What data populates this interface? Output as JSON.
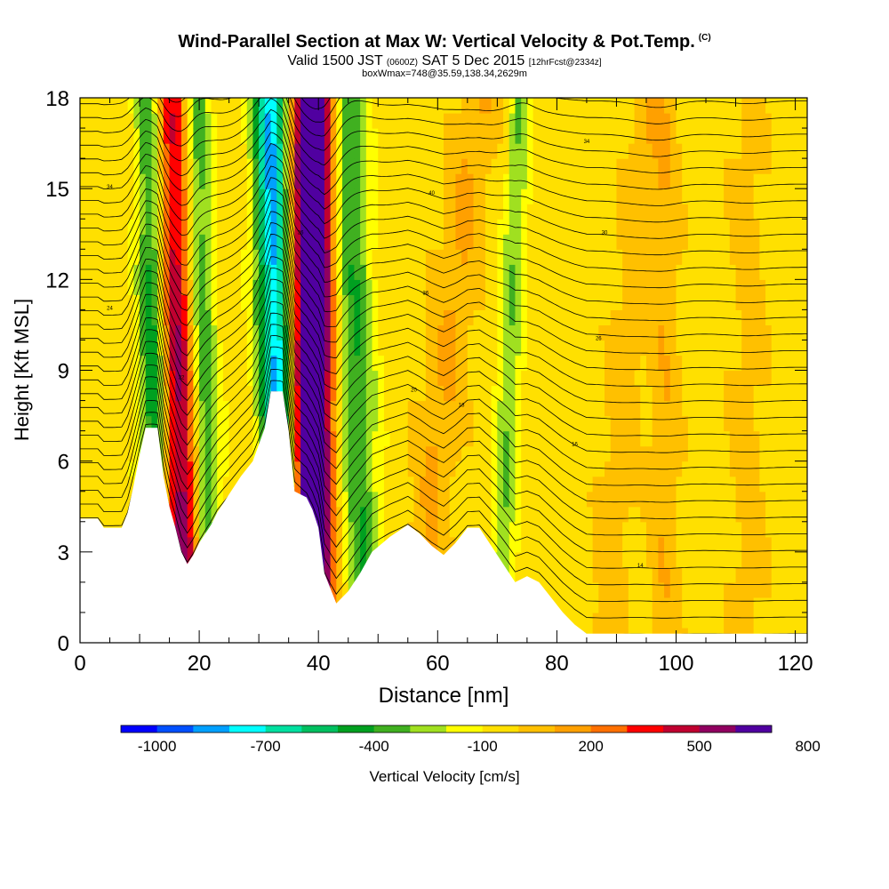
{
  "header": {
    "title": "Wind-Parallel Section at Max W: Vertical Velocity & Pot.Temp.",
    "title_tag": "(C)",
    "valid_prefix": "Valid 1500 JST",
    "valid_utc": "(0600Z)",
    "valid_date": "SAT 5 Dec 2015",
    "forecast": "[12hrFcst@2334z]",
    "box_info": "boxWmax=748@35.59,138.34,2629m"
  },
  "colorbar": {
    "title": "Vertical Velocity [cm/s]",
    "labels": [
      "-1000",
      "-700",
      "-400",
      "-100",
      "200",
      "500",
      "800"
    ],
    "colors": [
      "#0000ff",
      "#0050ff",
      "#00a0ff",
      "#00ffff",
      "#00e0a0",
      "#00c060",
      "#00a020",
      "#40b020",
      "#a0e020",
      "#ffff00",
      "#ffe000",
      "#ffc000",
      "#ffa000",
      "#ff7000",
      "#ff0000",
      "#c00030",
      "#900060",
      "#5000a0"
    ]
  },
  "chart_data": {
    "type": "heatmap",
    "xlabel": "Distance [nm]",
    "ylabel": "Height [Kft MSL]",
    "xlim": [
      0,
      122
    ],
    "ylim": [
      0,
      18
    ],
    "xticks": [
      0,
      20,
      40,
      60,
      80,
      100,
      120
    ],
    "yticks": [
      0,
      3,
      6,
      9,
      12,
      15,
      18
    ],
    "terrain": [
      [
        0,
        4.1
      ],
      [
        3,
        4.1
      ],
      [
        4,
        3.8
      ],
      [
        7,
        3.8
      ],
      [
        8,
        4.3
      ],
      [
        9,
        5.2
      ],
      [
        10,
        6.2
      ],
      [
        11,
        7.1
      ],
      [
        13,
        7.1
      ],
      [
        14,
        5.5
      ],
      [
        15,
        4.5
      ],
      [
        16,
        3.8
      ],
      [
        17,
        3.0
      ],
      [
        18,
        2.6
      ],
      [
        19,
        2.9
      ],
      [
        20,
        3.3
      ],
      [
        21,
        3.6
      ],
      [
        22,
        3.9
      ],
      [
        23,
        4.3
      ],
      [
        25,
        4.9
      ],
      [
        27,
        5.5
      ],
      [
        29,
        6.0
      ],
      [
        31,
        7.1
      ],
      [
        32,
        8.3
      ],
      [
        34,
        8.3
      ],
      [
        35,
        7.0
      ],
      [
        36,
        5.0
      ],
      [
        38,
        4.8
      ],
      [
        39,
        4.4
      ],
      [
        40,
        3.8
      ],
      [
        41,
        2.3
      ],
      [
        43,
        1.3
      ],
      [
        45,
        1.7
      ],
      [
        47,
        2.3
      ],
      [
        49,
        3.0
      ],
      [
        52,
        3.5
      ],
      [
        55,
        3.9
      ],
      [
        57,
        3.6
      ],
      [
        59,
        3.2
      ],
      [
        61,
        2.9
      ],
      [
        63,
        3.3
      ],
      [
        65,
        3.8
      ],
      [
        67,
        3.8
      ],
      [
        69,
        3.2
      ],
      [
        71,
        2.6
      ],
      [
        73,
        2.0
      ],
      [
        75,
        2.2
      ],
      [
        77,
        2.0
      ],
      [
        79,
        1.5
      ],
      [
        81,
        1.0
      ],
      [
        83,
        0.6
      ],
      [
        85,
        0.3
      ],
      [
        122,
        0.3
      ]
    ],
    "w_features": [
      {
        "x_base": 13,
        "x_top": 12,
        "w": -500,
        "width": 2.5
      },
      {
        "x_base": 17,
        "x_top": 14,
        "w": 500,
        "width": 2.5
      },
      {
        "x_base": 19,
        "x_top": 17,
        "w": 300,
        "width": 2.0
      },
      {
        "x_base": 22,
        "x_top": 19,
        "w": -350,
        "width": 2.5
      },
      {
        "x_base": 34,
        "x_top": 32,
        "w": -800,
        "width": 3.0
      },
      {
        "x_base": 38,
        "x_top": 38,
        "w": 800,
        "width": 3.0
      },
      {
        "x_base": 41,
        "x_top": 41,
        "w": 400,
        "width": 2.0
      },
      {
        "x_base": 48,
        "x_top": 45,
        "w": -350,
        "width": 3.0
      },
      {
        "x_base": 56,
        "x_top": 67,
        "w": 150,
        "width": 3.5
      },
      {
        "x_base": 70,
        "x_top": 74,
        "w": -250,
        "width": 2.0
      },
      {
        "x_base": 88,
        "x_top": 95,
        "w": 100,
        "width": 3.0
      },
      {
        "x_base": 98,
        "x_top": 98,
        "w": 120,
        "width": 2.5
      },
      {
        "x_base": 112,
        "x_top": 112,
        "w": 80,
        "width": 3.0
      }
    ],
    "theta_contour_labels": [
      {
        "x": 17,
        "y": 8.7,
        "text": "32"
      },
      {
        "x": 37,
        "y": 13.5,
        "text": "36"
      },
      {
        "x": 56,
        "y": 8.3,
        "text": "20"
      },
      {
        "x": 64,
        "y": 7.8,
        "text": "18"
      },
      {
        "x": 83,
        "y": 6.5,
        "text": "16"
      },
      {
        "x": 94,
        "y": 2.5,
        "text": "14"
      },
      {
        "x": 87,
        "y": 10.0,
        "text": "26"
      },
      {
        "x": 88,
        "y": 13.5,
        "text": "30"
      },
      {
        "x": 85,
        "y": 16.5,
        "text": "34"
      },
      {
        "x": 59,
        "y": 14.8,
        "text": "40"
      },
      {
        "x": 58,
        "y": 11.5,
        "text": "36"
      },
      {
        "x": 5,
        "y": 11.0,
        "text": "24"
      },
      {
        "x": 5,
        "y": 15.0,
        "text": "34"
      }
    ]
  }
}
